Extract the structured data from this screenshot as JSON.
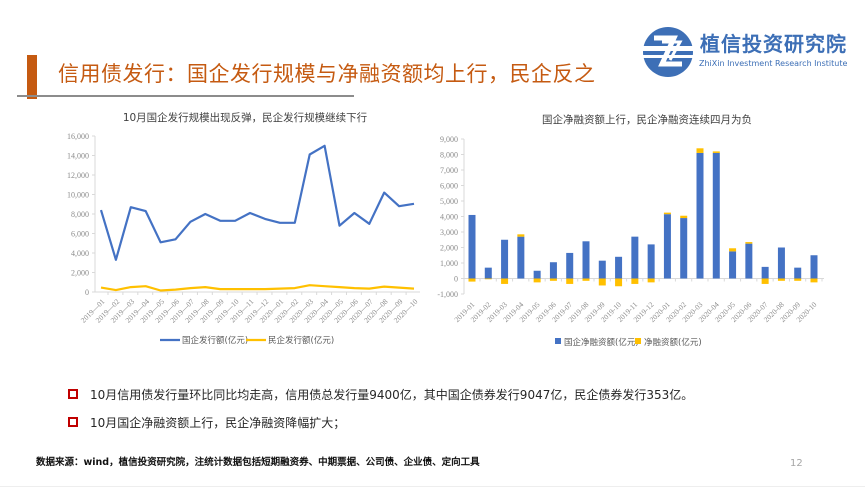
{
  "header": {
    "title": "信用债发行：国企发行规模与净融资额均上行，民企反之",
    "accent_color": "#c55a11"
  },
  "logo": {
    "icon": "zhixin-logo-icon",
    "name": "植信投资研究院",
    "subtitle": "ZhiXin Investment Research Institute",
    "color": "#3d6fb6"
  },
  "chart_data": [
    {
      "type": "line",
      "title": "10月国企发行规模出现反弹，民企发行规模继续下行",
      "xlabel": "",
      "ylabel": "",
      "ylim": [
        0,
        16000
      ],
      "yticks": [
        "0",
        "2,000",
        "4,000",
        "6,000",
        "8,000",
        "10,000",
        "12,000",
        "14,000",
        "16,000"
      ],
      "grid": false,
      "legend_position": "bottom",
      "categories": [
        "2019-01",
        "2019-02",
        "2019-03",
        "2019-04",
        "2019-05",
        "2019-06",
        "2019-07",
        "2019-08",
        "2019-09",
        "2019-10",
        "2019-11",
        "2019-12",
        "2020-01",
        "2020-02",
        "2020-03",
        "2020-04",
        "2020-05",
        "2020-06",
        "2020-07",
        "2020-08",
        "2020-09",
        "2020-10"
      ],
      "series": [
        {
          "name": "国企发行额(亿元)",
          "color": "#4472c4",
          "values": [
            8400,
            3300,
            8700,
            8300,
            5100,
            5400,
            7200,
            8000,
            7300,
            7300,
            8100,
            7500,
            7100,
            7100,
            14100,
            15000,
            6800,
            8100,
            7000,
            10200,
            8800,
            9047
          ]
        },
        {
          "name": "民企发行额(亿元)",
          "color": "#ffc000",
          "values": [
            450,
            200,
            500,
            600,
            150,
            250,
            400,
            500,
            300,
            300,
            300,
            300,
            350,
            400,
            700,
            600,
            500,
            400,
            350,
            550,
            450,
            353
          ]
        }
      ]
    },
    {
      "type": "bar",
      "stacked": true,
      "title": "国企净融资额上行，民企净融资连续四月为负",
      "xlabel": "",
      "ylabel": "",
      "ylim": [
        -1000,
        9000
      ],
      "yticks": [
        "-1,000",
        "0",
        "1,000",
        "2,000",
        "3,000",
        "4,000",
        "5,000",
        "6,000",
        "7,000",
        "8,000",
        "9,000"
      ],
      "grid": false,
      "legend_position": "bottom",
      "categories": [
        "2019-01",
        "2019-02",
        "2019-03",
        "2019-04",
        "2019-05",
        "2019-06",
        "2019-07",
        "2019-08",
        "2019-09",
        "2019-10",
        "2019-11",
        "2019-12",
        "2020-01",
        "2020-02",
        "2020-03",
        "2020-04",
        "2020-05",
        "2020-06",
        "2020-07",
        "2020-08",
        "2020-09",
        "2020-10"
      ],
      "series": [
        {
          "name": "国企净融资额(亿元)",
          "color": "#4472c4",
          "values": [
            4100,
            700,
            2500,
            2700,
            500,
            1050,
            1650,
            2400,
            1150,
            1400,
            2700,
            2200,
            4150,
            3900,
            8100,
            8100,
            1750,
            2250,
            750,
            2000,
            700,
            1500
          ]
        },
        {
          "name": "净融资额(亿元)",
          "color": "#ffc000",
          "values": [
            -200,
            -50,
            -350,
            150,
            -250,
            -150,
            -350,
            -150,
            -450,
            -500,
            -350,
            -250,
            100,
            150,
            300,
            100,
            200,
            100,
            -350,
            -150,
            -150,
            -250
          ]
        }
      ]
    }
  ],
  "bullets": [
    {
      "icon": "square-bullet-icon",
      "text": "10月信用债发行量环比同比均走高，信用债总发行量9400亿，其中国企债券发行9047亿，民企债券发行353亿。"
    },
    {
      "icon": "square-bullet-icon",
      "text": "10月国企净融资额上行，民企净融资降幅扩大；"
    }
  ],
  "footer": {
    "source": "数据来源：wind，植信投资研究院，注统计数据包括短期融资券、中期票据、公司债、企业债、定向工具",
    "page_number": "12"
  }
}
